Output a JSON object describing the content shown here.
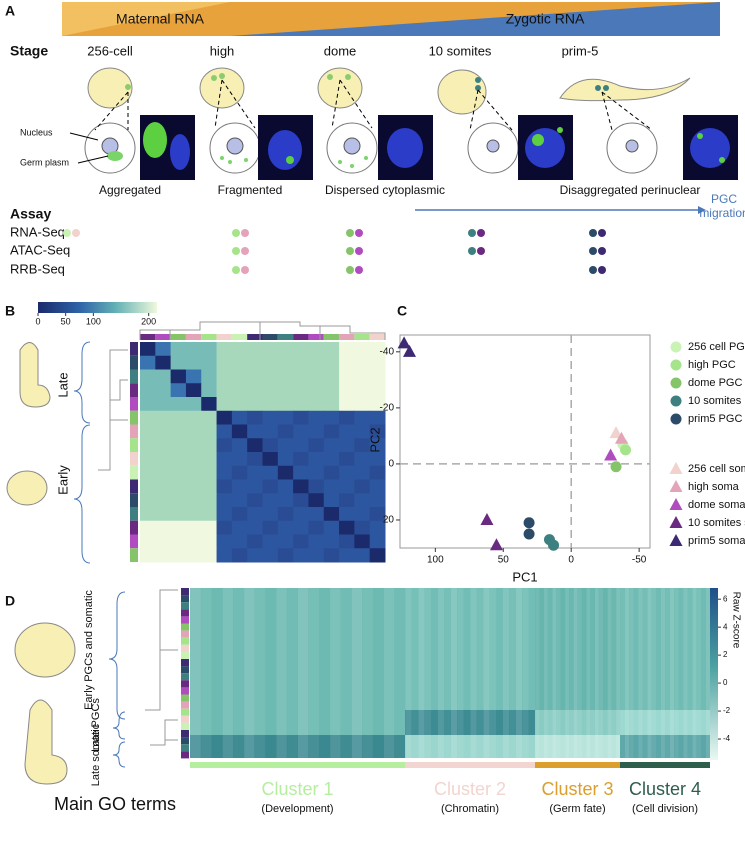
{
  "panel_a": {
    "label": "A",
    "maternal": "Maternal RNA",
    "zygotic": "Zygotic RNA",
    "stage_heading": "Stage",
    "stages": [
      "256-cell",
      "high",
      "dome",
      "10 somites",
      "prim-5"
    ],
    "annotations": [
      "Nucleus",
      "Germ plasm"
    ],
    "germ_plasm_states": [
      "Aggregated",
      "Fragmented",
      "Dispersed cytoplasmic",
      "Disaggregated perinuclear"
    ],
    "assay_heading": "Assay",
    "assays": [
      "RNA-Seq",
      "ATAC-Seq",
      "RRB-Seq"
    ],
    "migration": [
      "PGC",
      "migration"
    ]
  },
  "panel_b": {
    "label": "B",
    "colorbar": {
      "lim": [
        0,
        215
      ],
      "ticks": [
        0,
        50,
        100,
        200
      ]
    },
    "groups": [
      "Late",
      "Early"
    ]
  },
  "panel_c": {
    "label": "C",
    "chart_data": {
      "type": "scatter",
      "xlabel": "PC1",
      "ylabel": "PC2",
      "xlim": [
        126,
        -58
      ],
      "ylim": [
        -46,
        30
      ],
      "xticks": [
        100,
        50,
        0,
        -50
      ],
      "yticks": [
        -40,
        -20,
        0,
        20
      ],
      "series": [
        {
          "name": "256 cell PGC",
          "color": "#c9f2b4",
          "marker": "circle",
          "x": [
            -38
          ],
          "y": [
            -7
          ]
        },
        {
          "name": "high PGC",
          "color": "#a6e48c",
          "marker": "circle",
          "x": [
            -40
          ],
          "y": [
            -5
          ]
        },
        {
          "name": "dome PGC",
          "color": "#86c46a",
          "marker": "circle",
          "x": [
            -33
          ],
          "y": [
            1
          ]
        },
        {
          "name": "10 somites PGC",
          "color": "#3e8080",
          "marker": "circle",
          "x": [
            16,
            13
          ],
          "y": [
            27,
            29
          ]
        },
        {
          "name": "prim5 PGC",
          "color": "#2c4b68",
          "marker": "circle",
          "x": [
            31,
            31
          ],
          "y": [
            21,
            25
          ]
        },
        {
          "name": "256 cell soma",
          "color": "#f2d2cc",
          "marker": "triangle",
          "x": [
            -33
          ],
          "y": [
            -11
          ]
        },
        {
          "name": "high soma",
          "color": "#e4a4b8",
          "marker": "triangle",
          "x": [
            -37
          ],
          "y": [
            -9
          ]
        },
        {
          "name": "dome soma",
          "color": "#b04cc0",
          "marker": "triangle",
          "x": [
            -29
          ],
          "y": [
            -3
          ]
        },
        {
          "name": "10 somites soma",
          "color": "#6a2a82",
          "marker": "triangle",
          "x": [
            62,
            55
          ],
          "y": [
            20,
            29
          ]
        },
        {
          "name": "prim5 soma",
          "color": "#3d2a72",
          "marker": "triangle",
          "x": [
            123,
            119
          ],
          "y": [
            -43,
            -40
          ]
        }
      ]
    }
  },
  "panel_d": {
    "label": "D",
    "colorbar": {
      "label": "Raw Z-score",
      "lim": [
        -5.5,
        6.8
      ],
      "ticks": [
        6,
        4,
        2,
        0,
        -2,
        -4
      ]
    },
    "row_groups": [
      "Early PGCs and somatic",
      "Late PGCs",
      "Late somatic"
    ],
    "go_heading": "Main GO terms",
    "clusters": [
      {
        "name": "Cluster 1",
        "term": "(Development)",
        "color": "#b6eea0"
      },
      {
        "name": "Cluster 2",
        "term": "(Chromatin)",
        "color": "#f2d4d0"
      },
      {
        "name": "Cluster 3",
        "term": "(Germ fate)",
        "color": "#dc9e2c"
      },
      {
        "name": "Cluster 4",
        "term": "(Cell division)",
        "color": "#2e5e4c"
      }
    ]
  }
}
